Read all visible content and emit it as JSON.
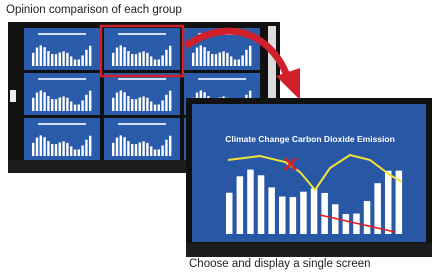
{
  "header": {
    "title": "Opinion comparison of each group"
  },
  "detail": {
    "screen_title": "Climate Change Carbon Dioxide Emission"
  },
  "footer": {
    "caption": "Choose and display a single screen"
  }
}
